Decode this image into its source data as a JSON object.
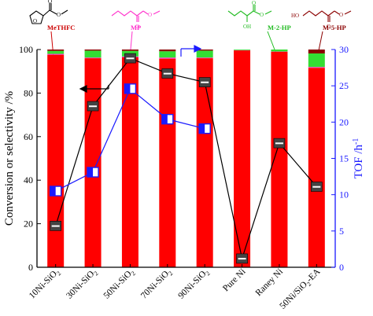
{
  "chart_data": {
    "type": "bar",
    "categories": [
      "10Ni-SiO2",
      "30Ni-SiO2",
      "50Ni-SiO2",
      "70Ni-SiO2",
      "90Ni-SiO2",
      "Pure Ni",
      "Raney Ni",
      "50Ni/SiO2-EA"
    ],
    "category_labels": [
      [
        "10Ni-SiO",
        "2",
        ""
      ],
      [
        "30Ni-SiO",
        "2",
        ""
      ],
      [
        "50Ni-SiO",
        "2",
        ""
      ],
      [
        "70Ni-SiO",
        "2",
        ""
      ],
      [
        "90Ni-SiO",
        "2",
        ""
      ],
      [
        "Pure Ni",
        "",
        ""
      ],
      [
        "Raney Ni",
        "",
        ""
      ],
      [
        "50Ni/SiO",
        "2",
        "-EA"
      ]
    ],
    "ylabel": "Conversion or selectivity /%",
    "y2label_main": "TOF /h",
    "y2label_sup": "-1",
    "ylim": [
      0,
      100
    ],
    "y2lim": [
      0,
      30
    ],
    "yticks": [
      0,
      20,
      40,
      60,
      80,
      100
    ],
    "y2ticks": [
      0,
      5,
      10,
      15,
      20,
      25,
      30
    ],
    "stacked_series": [
      {
        "name": "MeTHFC",
        "color": "#ff0000",
        "values": [
          97.6,
          96.0,
          96.4,
          95.8,
          96.0,
          99.6,
          99.0,
          91.6
        ]
      },
      {
        "name": "MP",
        "color": "#ff33cc",
        "values": [
          0.4,
          0.3,
          0.4,
          0.5,
          0.3,
          0.1,
          0.1,
          0.4
        ]
      },
      {
        "name": "M-2-HP",
        "color": "#33dd33",
        "values": [
          1.4,
          3.2,
          2.6,
          2.9,
          3.2,
          0.3,
          0.9,
          6.2
        ]
      },
      {
        "name": "M-5-HP",
        "color": "#8b0000",
        "values": [
          0.6,
          0.5,
          0.6,
          0.8,
          0.5,
          0.0,
          0.0,
          1.8
        ]
      }
    ],
    "line_series": [
      {
        "name": "Conversion",
        "axis": "left",
        "color": "#000000",
        "values": [
          19,
          74,
          96,
          89,
          85,
          4,
          57,
          37
        ]
      },
      {
        "name": "TOF",
        "axis": "right",
        "color": "#1a1aff",
        "values": [
          10.5,
          13.1,
          24.6,
          20.4,
          19.1,
          null,
          null,
          null
        ]
      }
    ],
    "annotations": {
      "structure_labels": [
        "MeTHFC",
        "MP",
        "M-2-HP",
        "M-5-HP"
      ],
      "hydroxyl_label": "OH",
      "hydroxyl_label_2": "HO"
    }
  }
}
